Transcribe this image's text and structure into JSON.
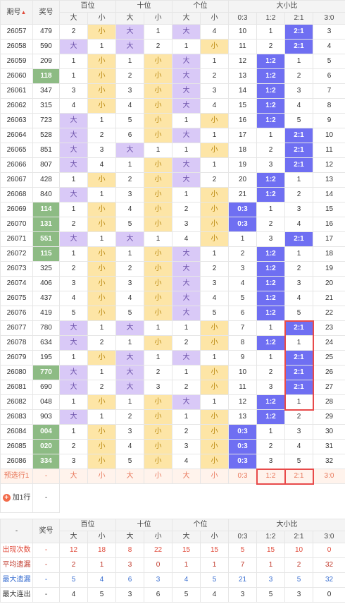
{
  "header": {
    "issue": "期号",
    "number": "奖号",
    "groups": [
      "百位",
      "十位",
      "个位",
      "大小比"
    ],
    "big": "大",
    "small": "小",
    "ratios": [
      "0:3",
      "1:2",
      "2:1",
      "3:0"
    ]
  },
  "rows": [
    {
      "issue": "26057",
      "num": "479",
      "h": [
        "2",
        "小"
      ],
      "hs": "s",
      "t": [
        "大",
        "1"
      ],
      "ts": "b",
      "u": [
        "大",
        "4"
      ],
      "us": "b",
      "r": [
        "10",
        "1",
        "2:1",
        "3"
      ],
      "rs": 2
    },
    {
      "issue": "26058",
      "num": "590",
      "h": [
        "大",
        "1"
      ],
      "hs": "b",
      "t": [
        "大",
        "2"
      ],
      "ts": "b",
      "u": [
        "1",
        "小"
      ],
      "us": "s",
      "r": [
        "11",
        "2",
        "2:1",
        "4"
      ],
      "rs": 2
    },
    {
      "issue": "26059",
      "num": "209",
      "h": [
        "1",
        "小"
      ],
      "hs": "s",
      "t": [
        "1",
        "小"
      ],
      "ts": "s",
      "u": [
        "大",
        "1"
      ],
      "us": "b",
      "r": [
        "12",
        "1:2",
        "1",
        "5"
      ],
      "rs": 1
    },
    {
      "issue": "26060",
      "num": "118",
      "h": [
        "1",
        "小"
      ],
      "hs": "s",
      "t": [
        "2",
        "小"
      ],
      "ts": "s",
      "u": [
        "大",
        "2"
      ],
      "us": "b",
      "r": [
        "13",
        "1:2",
        "2",
        "6"
      ],
      "rs": 1,
      "gn": true
    },
    {
      "issue": "26061",
      "num": "347",
      "h": [
        "3",
        "小"
      ],
      "hs": "s",
      "t": [
        "3",
        "小"
      ],
      "ts": "s",
      "u": [
        "大",
        "3"
      ],
      "us": "b",
      "r": [
        "14",
        "1:2",
        "3",
        "7"
      ],
      "rs": 1
    },
    {
      "issue": "26062",
      "num": "315",
      "h": [
        "4",
        "小"
      ],
      "hs": "s",
      "t": [
        "4",
        "小"
      ],
      "ts": "s",
      "u": [
        "大",
        "4"
      ],
      "us": "b",
      "r": [
        "15",
        "1:2",
        "4",
        "8"
      ],
      "rs": 1
    },
    {
      "issue": "26063",
      "num": "723",
      "h": [
        "大",
        "1"
      ],
      "hs": "b",
      "t": [
        "5",
        "小"
      ],
      "ts": "s",
      "u": [
        "1",
        "小"
      ],
      "us": "s",
      "r": [
        "16",
        "1:2",
        "5",
        "9"
      ],
      "rs": 1
    },
    {
      "issue": "26064",
      "num": "528",
      "h": [
        "大",
        "2"
      ],
      "hs": "b",
      "t": [
        "6",
        "小"
      ],
      "ts": "s",
      "u": [
        "大",
        "1"
      ],
      "us": "b",
      "r": [
        "17",
        "1",
        "2:1",
        "10"
      ],
      "rs": 2
    },
    {
      "issue": "26065",
      "num": "851",
      "h": [
        "大",
        "3"
      ],
      "hs": "b",
      "t": [
        "大",
        "1"
      ],
      "ts": "b",
      "u": [
        "1",
        "小"
      ],
      "us": "s",
      "r": [
        "18",
        "2",
        "2:1",
        "11"
      ],
      "rs": 2
    },
    {
      "issue": "26066",
      "num": "807",
      "h": [
        "大",
        "4"
      ],
      "hs": "b",
      "t": [
        "1",
        "小"
      ],
      "ts": "s",
      "u": [
        "大",
        "1"
      ],
      "us": "b",
      "r": [
        "19",
        "3",
        "2:1",
        "12"
      ],
      "rs": 2
    },
    {
      "issue": "26067",
      "num": "428",
      "h": [
        "1",
        "小"
      ],
      "hs": "s",
      "t": [
        "2",
        "小"
      ],
      "ts": "s",
      "u": [
        "大",
        "2"
      ],
      "us": "b",
      "r": [
        "20",
        "1:2",
        "1",
        "13"
      ],
      "rs": 1
    },
    {
      "issue": "26068",
      "num": "840",
      "h": [
        "大",
        "1"
      ],
      "hs": "b",
      "t": [
        "3",
        "小"
      ],
      "ts": "s",
      "u": [
        "1",
        "小"
      ],
      "us": "s",
      "r": [
        "21",
        "1:2",
        "2",
        "14"
      ],
      "rs": 1
    },
    {
      "issue": "26069",
      "num": "114",
      "h": [
        "1",
        "小"
      ],
      "hs": "s",
      "t": [
        "4",
        "小"
      ],
      "ts": "s",
      "u": [
        "2",
        "小"
      ],
      "us": "s",
      "r": [
        "0:3",
        "1",
        "3",
        "15"
      ],
      "rs": 0,
      "gn": true
    },
    {
      "issue": "26070",
      "num": "131",
      "h": [
        "2",
        "小"
      ],
      "hs": "s",
      "t": [
        "5",
        "小"
      ],
      "ts": "s",
      "u": [
        "3",
        "小"
      ],
      "us": "s",
      "r": [
        "0:3",
        "2",
        "4",
        "16"
      ],
      "rs": 0,
      "gn": true
    },
    {
      "issue": "26071",
      "num": "551",
      "h": [
        "大",
        "1"
      ],
      "hs": "b",
      "t": [
        "大",
        "1"
      ],
      "ts": "b",
      "u": [
        "4",
        "小"
      ],
      "us": "s",
      "r": [
        "1",
        "3",
        "2:1",
        "17"
      ],
      "rs": 2,
      "gn": true
    },
    {
      "issue": "26072",
      "num": "115",
      "h": [
        "1",
        "小"
      ],
      "hs": "s",
      "t": [
        "1",
        "小"
      ],
      "ts": "s",
      "u": [
        "大",
        "1"
      ],
      "us": "b",
      "r": [
        "2",
        "1:2",
        "1",
        "18"
      ],
      "rs": 1,
      "gn": true
    },
    {
      "issue": "26073",
      "num": "325",
      "h": [
        "2",
        "小"
      ],
      "hs": "s",
      "t": [
        "2",
        "小"
      ],
      "ts": "s",
      "u": [
        "大",
        "2"
      ],
      "us": "b",
      "r": [
        "3",
        "1:2",
        "2",
        "19"
      ],
      "rs": 1
    },
    {
      "issue": "26074",
      "num": "406",
      "h": [
        "3",
        "小"
      ],
      "hs": "s",
      "t": [
        "3",
        "小"
      ],
      "ts": "s",
      "u": [
        "大",
        "3"
      ],
      "us": "b",
      "r": [
        "4",
        "1:2",
        "3",
        "20"
      ],
      "rs": 1
    },
    {
      "issue": "26075",
      "num": "437",
      "h": [
        "4",
        "小"
      ],
      "hs": "s",
      "t": [
        "4",
        "小"
      ],
      "ts": "s",
      "u": [
        "大",
        "4"
      ],
      "us": "b",
      "r": [
        "5",
        "1:2",
        "4",
        "21"
      ],
      "rs": 1
    },
    {
      "issue": "26076",
      "num": "419",
      "h": [
        "5",
        "小"
      ],
      "hs": "s",
      "t": [
        "5",
        "小"
      ],
      "ts": "s",
      "u": [
        "大",
        "5"
      ],
      "us": "b",
      "r": [
        "6",
        "1:2",
        "5",
        "22"
      ],
      "rs": 1
    },
    {
      "issue": "26077",
      "num": "780",
      "h": [
        "大",
        "1"
      ],
      "hs": "b",
      "t": [
        "大",
        "1"
      ],
      "ts": "b",
      "u": [
        "1",
        "小"
      ],
      "us": "s",
      "r": [
        "7",
        "1",
        "2:1",
        "23"
      ],
      "rs": 2
    },
    {
      "issue": "26078",
      "num": "634",
      "h": [
        "大",
        "2"
      ],
      "hs": "b",
      "t": [
        "1",
        "小"
      ],
      "ts": "s",
      "u": [
        "2",
        "小"
      ],
      "us": "s",
      "r": [
        "8",
        "1:2",
        "1",
        "24"
      ],
      "rs": 1
    },
    {
      "issue": "26079",
      "num": "195",
      "h": [
        "1",
        "小"
      ],
      "hs": "s",
      "t": [
        "大",
        "1"
      ],
      "ts": "b",
      "u": [
        "大",
        "1"
      ],
      "us": "b",
      "r": [
        "9",
        "1",
        "2:1",
        "25"
      ],
      "rs": 2
    },
    {
      "issue": "26080",
      "num": "770",
      "h": [
        "大",
        "1"
      ],
      "hs": "b",
      "t": [
        "大",
        "2"
      ],
      "ts": "b",
      "u": [
        "1",
        "小"
      ],
      "us": "s",
      "r": [
        "10",
        "2",
        "2:1",
        "26"
      ],
      "rs": 2,
      "gn": true
    },
    {
      "issue": "26081",
      "num": "690",
      "h": [
        "大",
        "2"
      ],
      "hs": "b",
      "t": [
        "大",
        "3"
      ],
      "ts": "b",
      "u": [
        "2",
        "小"
      ],
      "us": "s",
      "r": [
        "11",
        "3",
        "2:1",
        "27"
      ],
      "rs": 2
    },
    {
      "issue": "26082",
      "num": "048",
      "h": [
        "1",
        "小"
      ],
      "hs": "s",
      "t": [
        "1",
        "小"
      ],
      "ts": "s",
      "u": [
        "大",
        "1"
      ],
      "us": "b",
      "r": [
        "12",
        "1:2",
        "1",
        "28"
      ],
      "rs": 1
    },
    {
      "issue": "26083",
      "num": "903",
      "h": [
        "大",
        "1"
      ],
      "hs": "b",
      "t": [
        "2",
        "小"
      ],
      "ts": "s",
      "u": [
        "1",
        "小"
      ],
      "us": "s",
      "r": [
        "13",
        "1:2",
        "2",
        "29"
      ],
      "rs": 1
    },
    {
      "issue": "26084",
      "num": "004",
      "h": [
        "1",
        "小"
      ],
      "hs": "s",
      "t": [
        "3",
        "小"
      ],
      "ts": "s",
      "u": [
        "2",
        "小"
      ],
      "us": "s",
      "r": [
        "0:3",
        "1",
        "3",
        "30"
      ],
      "rs": 0,
      "gn": true
    },
    {
      "issue": "26085",
      "num": "020",
      "h": [
        "2",
        "小"
      ],
      "hs": "s",
      "t": [
        "4",
        "小"
      ],
      "ts": "s",
      "u": [
        "3",
        "小"
      ],
      "us": "s",
      "r": [
        "0:3",
        "2",
        "4",
        "31"
      ],
      "rs": 0,
      "gn": true
    },
    {
      "issue": "26086",
      "num": "334",
      "h": [
        "3",
        "小"
      ],
      "hs": "s",
      "t": [
        "5",
        "小"
      ],
      "ts": "s",
      "u": [
        "4",
        "小"
      ],
      "us": "s",
      "r": [
        "0:3",
        "3",
        "5",
        "32"
      ],
      "rs": 0,
      "gn": true
    }
  ],
  "pending": {
    "label": "预选行1",
    "num": "-",
    "cells": [
      "大",
      "小",
      "大",
      "小",
      "大",
      "小",
      "0:3",
      "1:2",
      "2:1",
      "3:0"
    ]
  },
  "add_row": {
    "label": "加1行",
    "value": "-"
  },
  "stats": {
    "dash": "-",
    "number": "奖号",
    "rows": [
      {
        "label": "出现次数",
        "cells": [
          "12",
          "18",
          "8",
          "22",
          "15",
          "15",
          "5",
          "15",
          "10",
          "0"
        ]
      },
      {
        "label": "平均遗漏",
        "cells": [
          "2",
          "1",
          "3",
          "0",
          "1",
          "1",
          "7",
          "1",
          "2",
          "32"
        ]
      },
      {
        "label": "最大遗漏",
        "cells": [
          "5",
          "4",
          "6",
          "3",
          "4",
          "5",
          "21",
          "3",
          "5",
          "32"
        ]
      },
      {
        "label": "最大连出",
        "cells": [
          "4",
          "5",
          "3",
          "6",
          "5",
          "4",
          "3",
          "5",
          "3",
          "0"
        ]
      }
    ]
  }
}
